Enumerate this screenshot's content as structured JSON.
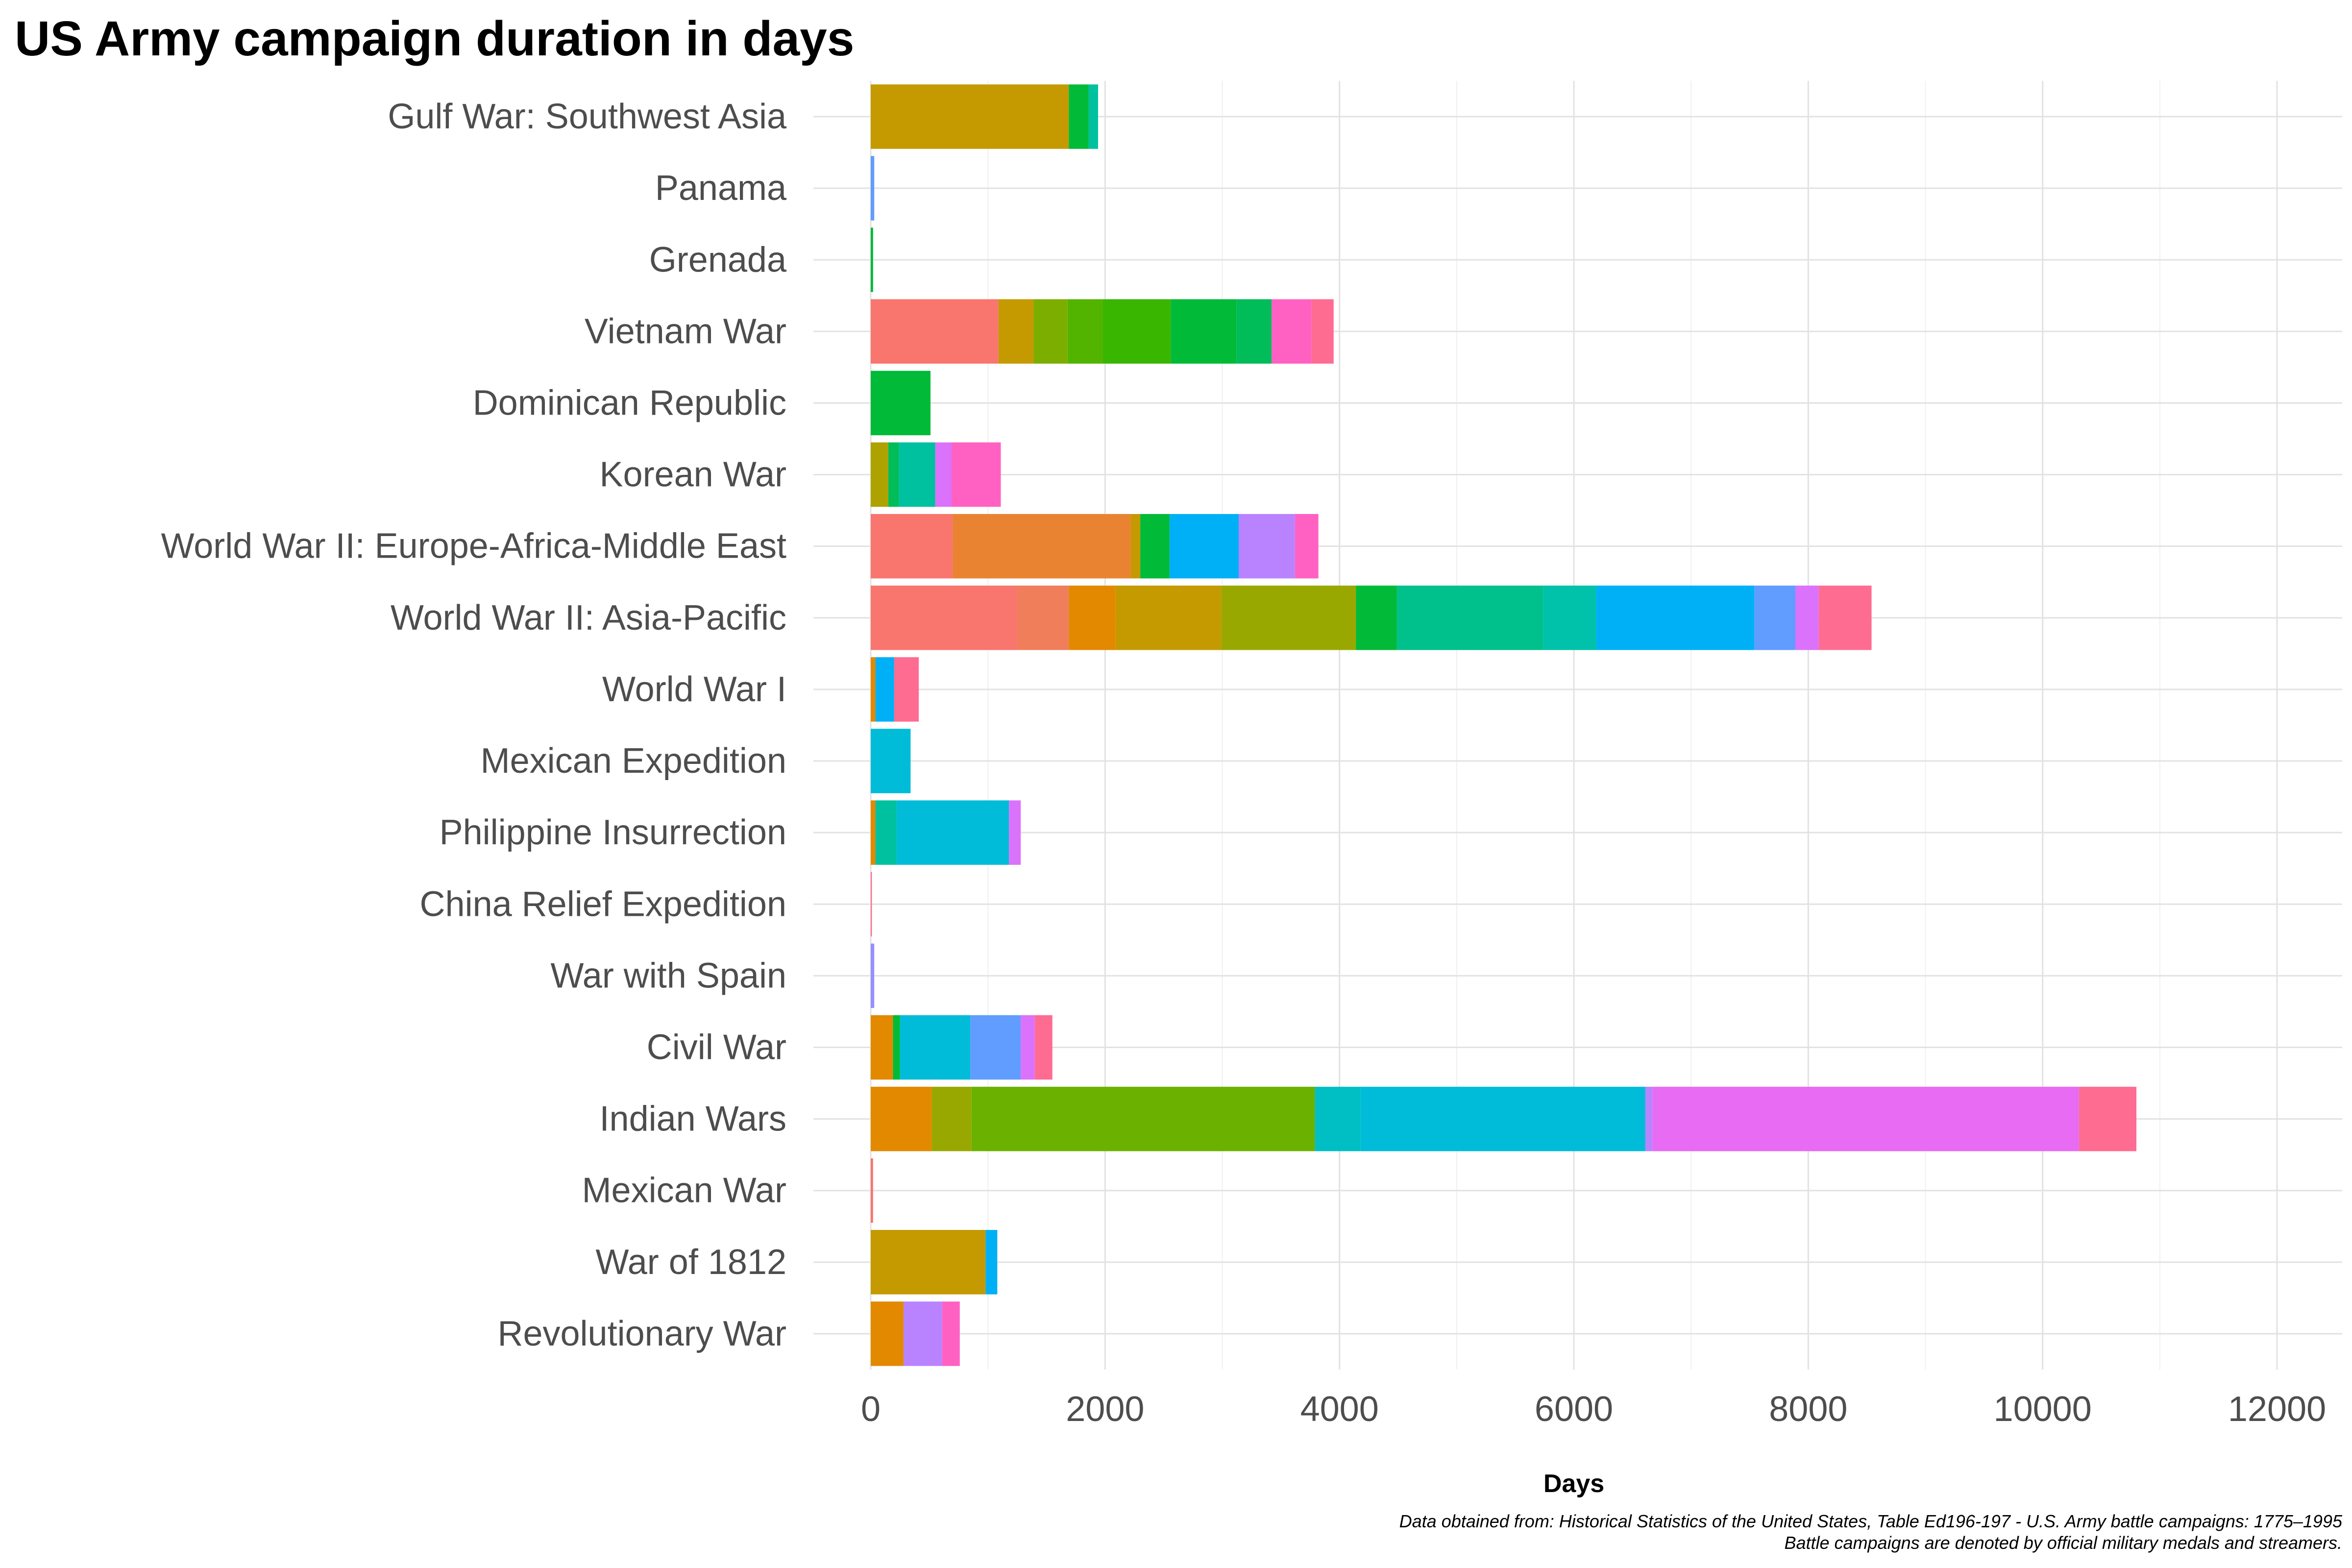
{
  "chart_data": {
    "type": "bar",
    "orientation": "horizontal",
    "stacked": true,
    "title": "US Army campaign duration in days",
    "xlabel": "Days",
    "ylabel": "",
    "xlim": [
      0,
      12000
    ],
    "x_ticks": [
      "0",
      "2000",
      "4000",
      "6000",
      "8000",
      "10000",
      "12000"
    ],
    "grid": true,
    "legend": "none",
    "caption": [
      "Data obtained from: Historical Statistics of the United States, Table Ed196-197 - U.S. Army battle campaigns: 1775–1995",
      "Battle campaigns are denoted by official military medals and streamers."
    ],
    "bars": [
      {
        "label": "Gulf War: Southwest Asia",
        "segments": [
          {
            "value": 1690,
            "color": "#C49A00"
          },
          {
            "value": 170,
            "color": "#00BA38"
          },
          {
            "value": 80,
            "color": "#00C19F"
          }
        ]
      },
      {
        "label": "Panama",
        "segments": [
          {
            "value": 30,
            "color": "#619CFF"
          }
        ]
      },
      {
        "label": "Grenada",
        "segments": [
          {
            "value": 20,
            "color": "#00BA38"
          }
        ]
      },
      {
        "label": "Vietnam War",
        "segments": [
          {
            "value": 1090,
            "color": "#F8766D"
          },
          {
            "value": 300,
            "color": "#C49A00"
          },
          {
            "value": 290,
            "color": "#7CAE00"
          },
          {
            "value": 300,
            "color": "#53B400"
          },
          {
            "value": 580,
            "color": "#39B600"
          },
          {
            "value": 560,
            "color": "#00BA38"
          },
          {
            "value": 300,
            "color": "#00BC59"
          },
          {
            "value": 340,
            "color": "#FF61C3"
          },
          {
            "value": 190,
            "color": "#FF6C91"
          }
        ]
      },
      {
        "label": "Dominican Republic",
        "segments": [
          {
            "value": 510,
            "color": "#00BA38"
          }
        ]
      },
      {
        "label": "Korean War",
        "segments": [
          {
            "value": 150,
            "color": "#AEA200"
          },
          {
            "value": 90,
            "color": "#00BC59"
          },
          {
            "value": 310,
            "color": "#00C19F"
          },
          {
            "value": 140,
            "color": "#DB72FB"
          },
          {
            "value": 420,
            "color": "#FF61C3"
          }
        ]
      },
      {
        "label": "World War II: Europe-Africa-Middle East",
        "segments": [
          {
            "value": 700,
            "color": "#F8766D"
          },
          {
            "value": 1520,
            "color": "#EA8331"
          },
          {
            "value": 80,
            "color": "#C49A00"
          },
          {
            "value": 250,
            "color": "#00BA38"
          },
          {
            "value": 590,
            "color": "#00B0F6"
          },
          {
            "value": 480,
            "color": "#B983FF"
          },
          {
            "value": 200,
            "color": "#FF61C3"
          }
        ]
      },
      {
        "label": "World War II: Asia-Pacific",
        "segments": [
          {
            "value": 1250,
            "color": "#F8766D"
          },
          {
            "value": 440,
            "color": "#F07E5A"
          },
          {
            "value": 400,
            "color": "#E38900"
          },
          {
            "value": 900,
            "color": "#C49A00"
          },
          {
            "value": 1150,
            "color": "#99A800"
          },
          {
            "value": 350,
            "color": "#00BA38"
          },
          {
            "value": 1250,
            "color": "#00C08B"
          },
          {
            "value": 450,
            "color": "#00C1AA"
          },
          {
            "value": 1350,
            "color": "#00B0F6"
          },
          {
            "value": 350,
            "color": "#619CFF"
          },
          {
            "value": 200,
            "color": "#DB72FB"
          },
          {
            "value": 450,
            "color": "#FF6C91"
          }
        ]
      },
      {
        "label": "World War I",
        "segments": [
          {
            "value": 40,
            "color": "#E38900"
          },
          {
            "value": 160,
            "color": "#00B0F6"
          },
          {
            "value": 210,
            "color": "#FF6C91"
          }
        ]
      },
      {
        "label": "Mexican Expedition",
        "segments": [
          {
            "value": 340,
            "color": "#00BCD8"
          }
        ]
      },
      {
        "label": "Philippine Insurrection",
        "segments": [
          {
            "value": 40,
            "color": "#E38900"
          },
          {
            "value": 180,
            "color": "#00C19F"
          },
          {
            "value": 960,
            "color": "#00BCD8"
          },
          {
            "value": 100,
            "color": "#DB72FB"
          }
        ]
      },
      {
        "label": "China Relief Expedition",
        "segments": [
          {
            "value": 10,
            "color": "#FF6C91"
          }
        ]
      },
      {
        "label": "War with Spain",
        "segments": [
          {
            "value": 30,
            "color": "#9590FF"
          }
        ]
      },
      {
        "label": "Civil War",
        "segments": [
          {
            "value": 190,
            "color": "#E38900"
          },
          {
            "value": 60,
            "color": "#00BA38"
          },
          {
            "value": 600,
            "color": "#00BCD8"
          },
          {
            "value": 430,
            "color": "#619CFF"
          },
          {
            "value": 120,
            "color": "#DB72FB"
          },
          {
            "value": 150,
            "color": "#FF6C91"
          }
        ]
      },
      {
        "label": "Indian Wars",
        "segments": [
          {
            "value": 520,
            "color": "#E38900"
          },
          {
            "value": 340,
            "color": "#99A800"
          },
          {
            "value": 2930,
            "color": "#6BB100"
          },
          {
            "value": 390,
            "color": "#00BFC4"
          },
          {
            "value": 2430,
            "color": "#00BCD8"
          },
          {
            "value": 60,
            "color": "#B983FF"
          },
          {
            "value": 3640,
            "color": "#E76BF3"
          },
          {
            "value": 490,
            "color": "#FF6C91"
          }
        ]
      },
      {
        "label": "Mexican War",
        "segments": [
          {
            "value": 20,
            "color": "#F8766D"
          }
        ]
      },
      {
        "label": "War of 1812",
        "segments": [
          {
            "value": 980,
            "color": "#C49A00"
          },
          {
            "value": 100,
            "color": "#00B0F6"
          }
        ]
      },
      {
        "label": "Revolutionary War",
        "segments": [
          {
            "value": 280,
            "color": "#E38900"
          },
          {
            "value": 330,
            "color": "#B983FF"
          },
          {
            "value": 150,
            "color": "#FF61C3"
          }
        ]
      }
    ]
  }
}
